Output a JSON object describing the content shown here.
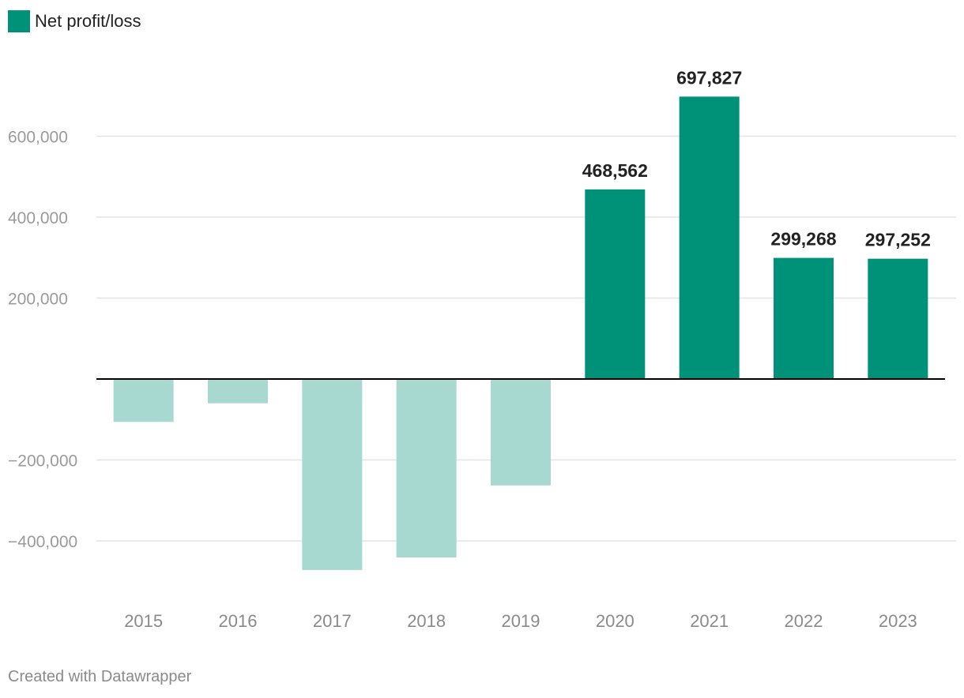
{
  "legend": {
    "label": "Net profit/loss",
    "color": "#009179"
  },
  "credit": "Created with Datawrapper",
  "colors": {
    "positive": "#009179",
    "negative": "#a8d9d1",
    "grid": "#e3e3e3",
    "baseline": "#000000"
  },
  "chart_data": {
    "type": "bar",
    "title": "",
    "xlabel": "",
    "ylabel": "",
    "categories": [
      "2015",
      "2016",
      "2017",
      "2018",
      "2019",
      "2020",
      "2021",
      "2022",
      "2023"
    ],
    "series": [
      {
        "name": "Net profit/loss",
        "values": [
          -106000,
          -60000,
          -472000,
          -441000,
          -263000,
          468562,
          697827,
          299268,
          297252
        ],
        "data_labels": [
          "",
          "",
          "",
          "",
          "",
          "468,562",
          "697,827",
          "299,268",
          "297,252"
        ]
      }
    ],
    "yticks": [
      600000,
      400000,
      200000,
      -200000,
      -400000
    ],
    "ytick_labels": [
      "600,000",
      "400,000",
      "200,000",
      "−200,000",
      "−400,000"
    ],
    "ylim": [
      -530000,
      770000
    ],
    "grid": true,
    "legend_position": "top-left"
  }
}
